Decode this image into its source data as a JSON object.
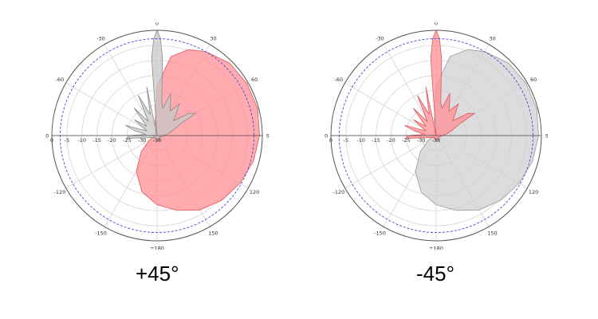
{
  "chart_data": [
    {
      "type": "polar-area",
      "caption": "+45°",
      "radial_range_db": [
        -38,
        0
      ],
      "radial_ticks": [
        "0",
        "-5",
        "-10",
        "-15",
        "-20",
        "-25",
        "-30",
        "-38"
      ],
      "angle_ticks": [
        "0",
        "30",
        "60",
        "90",
        "120",
        "150",
        "±180",
        "-150",
        "-120",
        "-90",
        "-60",
        "-30"
      ],
      "reference_circle_db": -3,
      "grid": true,
      "series": [
        {
          "color": "#ff8f94",
          "stroke": "#e0555c",
          "points": [
            [
              -30,
              -37
            ],
            [
              -10,
              -34
            ],
            [
              0,
              -20
            ],
            [
              10,
              -9
            ],
            [
              20,
              -5
            ],
            [
              30,
              -3
            ],
            [
              45,
              -1
            ],
            [
              60,
              -0.5
            ],
            [
              75,
              -0.4
            ],
            [
              90,
              -1
            ],
            [
              105,
              -2
            ],
            [
              120,
              -3.5
            ],
            [
              135,
              -5
            ],
            [
              150,
              -7
            ],
            [
              165,
              -10
            ],
            [
              180,
              -13
            ],
            [
              195,
              -17
            ],
            [
              210,
              -23
            ],
            [
              225,
              -30
            ],
            [
              240,
              -35
            ],
            [
              260,
              -37
            ],
            [
              300,
              -37
            ],
            [
              330,
              -37
            ]
          ]
        },
        {
          "color": "#c8c8c8",
          "stroke": "#8a8a8a",
          "points": [
            [
              -8,
              -38
            ],
            [
              -4,
              -10
            ],
            [
              -2,
              -3
            ],
            [
              0,
              0
            ],
            [
              2,
              -3
            ],
            [
              4,
              -10
            ],
            [
              8,
              -26
            ],
            [
              12,
              -28
            ],
            [
              18,
              -22
            ],
            [
              22,
              -25
            ],
            [
              28,
              -28
            ],
            [
              35,
              -24
            ],
            [
              40,
              -27
            ],
            [
              48,
              -30
            ],
            [
              55,
              -24
            ],
            [
              60,
              -22
            ],
            [
              64,
              -29
            ],
            [
              72,
              -32
            ],
            [
              80,
              -34
            ],
            [
              95,
              -36
            ],
            [
              130,
              -37
            ],
            [
              180,
              -36
            ],
            [
              230,
              -37
            ],
            [
              258,
              -34
            ],
            [
              265,
              -27
            ],
            [
              270,
              -28
            ],
            [
              276,
              -34
            ],
            [
              282,
              -30
            ],
            [
              288,
              -26
            ],
            [
              294,
              -34
            ],
            [
              305,
              -28
            ],
            [
              312,
              -33
            ],
            [
              320,
              -25
            ],
            [
              328,
              -32
            ],
            [
              335,
              -22
            ],
            [
              342,
              -30
            ],
            [
              348,
              -20
            ],
            [
              352,
              -38
            ]
          ]
        }
      ]
    },
    {
      "type": "polar-area",
      "caption": "-45°",
      "radial_range_db": [
        -38,
        0
      ],
      "radial_ticks": [
        "0",
        "-5",
        "-10",
        "-15",
        "-20",
        "-25",
        "-30",
        "-38"
      ],
      "angle_ticks": [
        "0",
        "30",
        "60",
        "90",
        "120",
        "150",
        "±180",
        "-150",
        "-120",
        "-90",
        "-60",
        "-30"
      ],
      "reference_circle_db": -3,
      "grid": true,
      "series": [
        {
          "color": "#d0d0d0",
          "stroke": "#9a9a9a",
          "points": [
            [
              -30,
              -37
            ],
            [
              -10,
              -34
            ],
            [
              0,
              -20
            ],
            [
              10,
              -9
            ],
            [
              20,
              -5
            ],
            [
              30,
              -3
            ],
            [
              45,
              -1
            ],
            [
              60,
              -0.5
            ],
            [
              75,
              -0.4
            ],
            [
              90,
              -1
            ],
            [
              105,
              -2
            ],
            [
              120,
              -3.5
            ],
            [
              135,
              -5
            ],
            [
              150,
              -7
            ],
            [
              165,
              -10
            ],
            [
              180,
              -13
            ],
            [
              195,
              -17
            ],
            [
              210,
              -23
            ],
            [
              225,
              -30
            ],
            [
              240,
              -35
            ],
            [
              260,
              -37
            ],
            [
              300,
              -37
            ],
            [
              330,
              -37
            ]
          ]
        },
        {
          "color": "#ff8f94",
          "stroke": "#e0555c",
          "points": [
            [
              -8,
              -38
            ],
            [
              -4,
              -10
            ],
            [
              -2,
              -3
            ],
            [
              0,
              0
            ],
            [
              2,
              -3
            ],
            [
              4,
              -10
            ],
            [
              8,
              -26
            ],
            [
              12,
              -28
            ],
            [
              18,
              -22
            ],
            [
              22,
              -25
            ],
            [
              28,
              -28
            ],
            [
              35,
              -24
            ],
            [
              40,
              -27
            ],
            [
              48,
              -30
            ],
            [
              55,
              -24
            ],
            [
              60,
              -22
            ],
            [
              64,
              -29
            ],
            [
              72,
              -32
            ],
            [
              80,
              -34
            ],
            [
              95,
              -36
            ],
            [
              130,
              -37
            ],
            [
              180,
              -36
            ],
            [
              230,
              -37
            ],
            [
              258,
              -34
            ],
            [
              265,
              -27
            ],
            [
              270,
              -28
            ],
            [
              276,
              -34
            ],
            [
              282,
              -30
            ],
            [
              288,
              -26
            ],
            [
              294,
              -34
            ],
            [
              305,
              -28
            ],
            [
              312,
              -33
            ],
            [
              320,
              -25
            ],
            [
              328,
              -32
            ],
            [
              335,
              -22
            ],
            [
              342,
              -30
            ],
            [
              348,
              -20
            ],
            [
              352,
              -38
            ]
          ]
        }
      ]
    }
  ]
}
